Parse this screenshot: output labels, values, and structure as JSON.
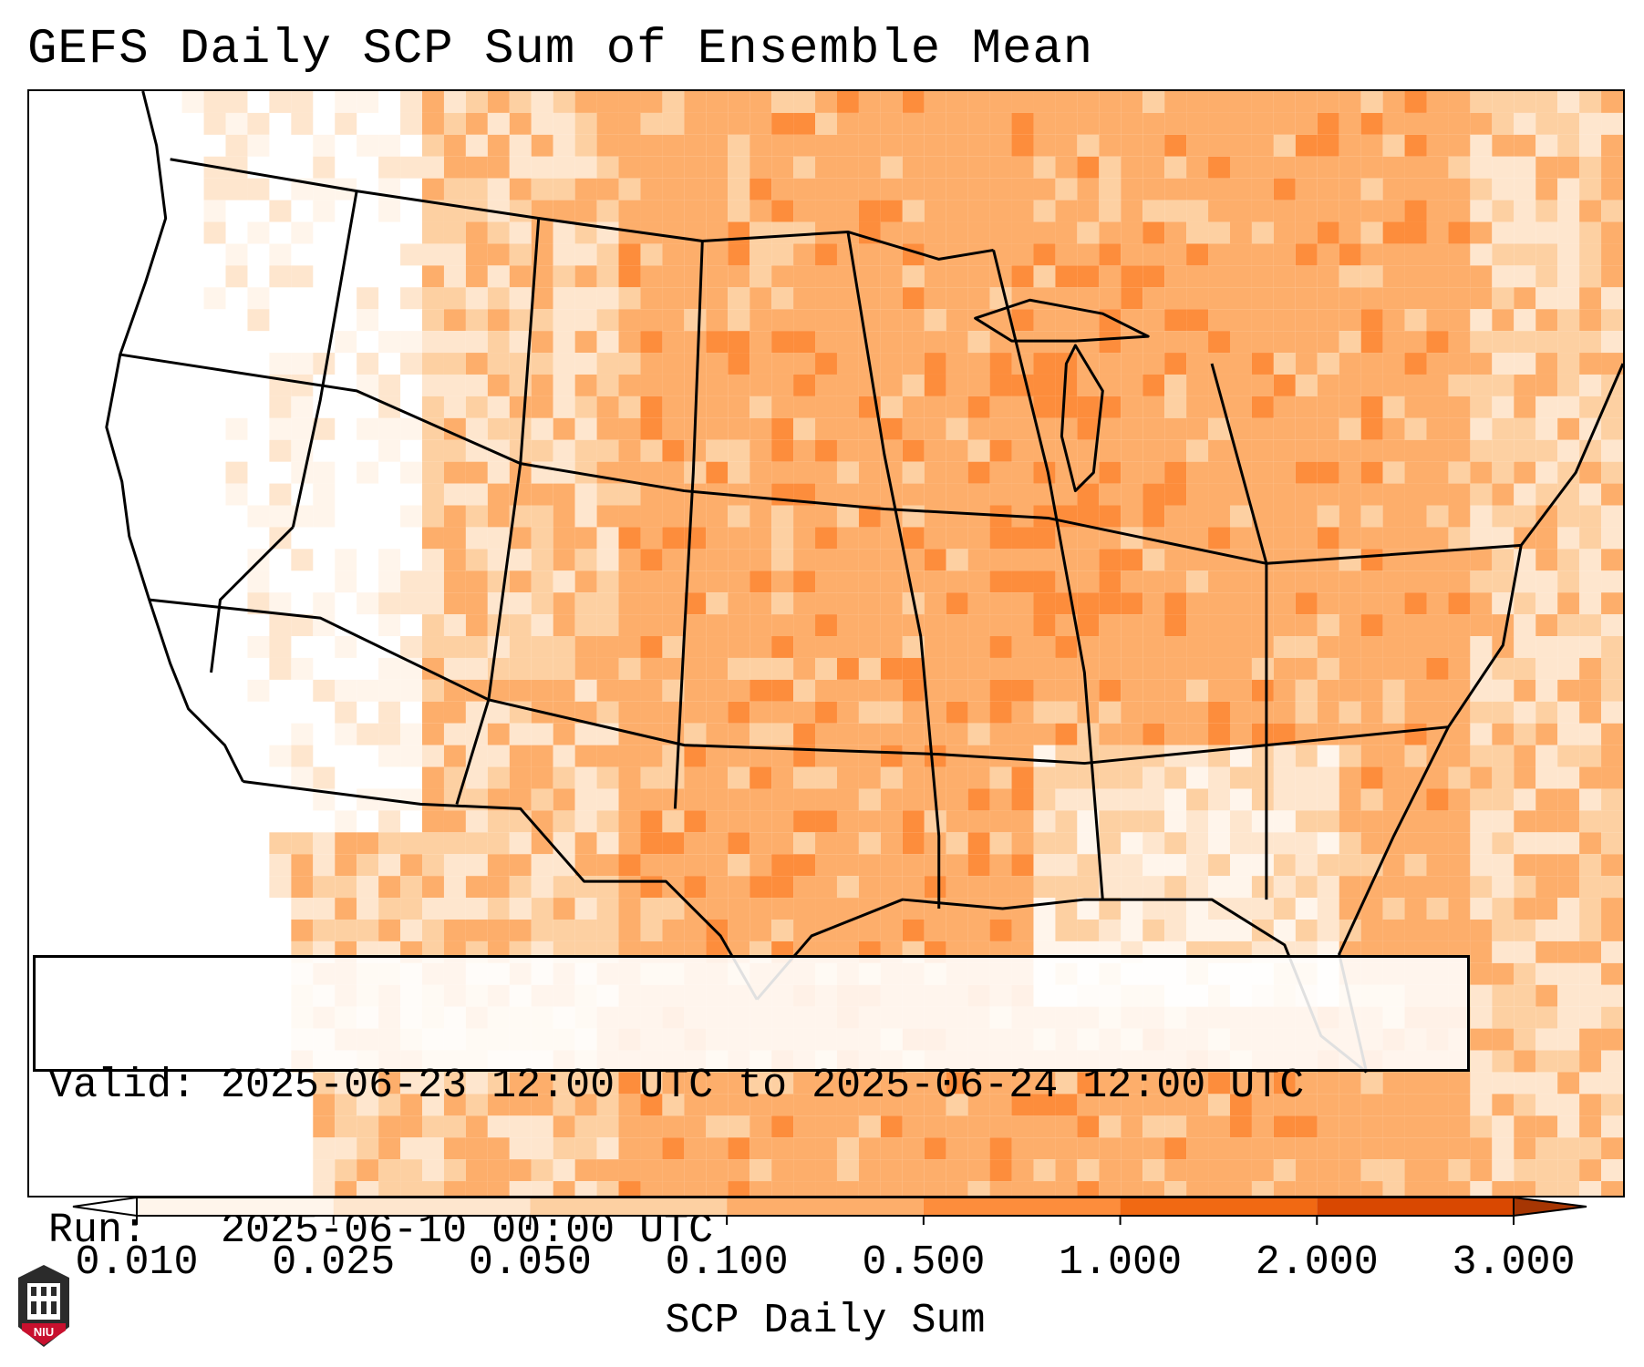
{
  "title": "GEFS Daily SCP Sum of Ensemble Mean",
  "info_box": {
    "valid_label": "Valid:",
    "valid_value": "2025-06-23 12:00 UTC to 2025-06-24 12:00 UTC",
    "run_label": "Run:",
    "run_value": "2025-06-10 00:00 UTC"
  },
  "colorbar": {
    "label": "SCP Daily Sum",
    "ticks": [
      "0.010",
      "0.025",
      "0.050",
      "0.100",
      "0.500",
      "1.000",
      "2.000",
      "3.000"
    ],
    "colors": [
      "#fff5eb",
      "#fee6ce",
      "#fdd0a2",
      "#fdae6b",
      "#fd8d3c",
      "#f16913",
      "#d94801",
      "#a63603"
    ],
    "under_color": "#ffffff",
    "over_color": "#a63603"
  },
  "map": {
    "region": "CONUS",
    "field": "SCP daily sum",
    "features": [
      "coastlines",
      "state boundaries",
      "country boundaries",
      "lakes"
    ]
  },
  "logo": {
    "text": "NIU",
    "colors": {
      "primary": "#c8102e",
      "secondary": "#2b2b2b"
    }
  }
}
